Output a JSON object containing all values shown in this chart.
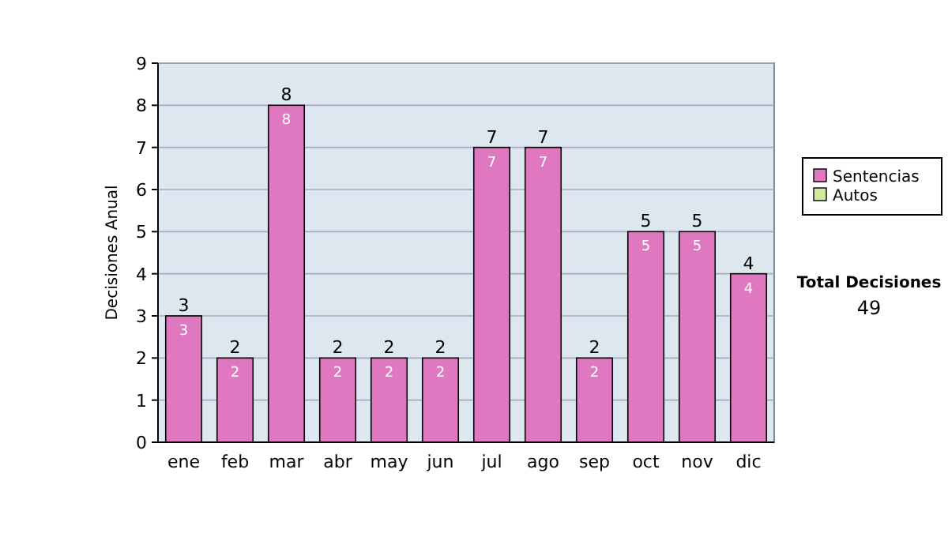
{
  "chart_data": {
    "type": "bar",
    "ylabel": "Decisiones Anual",
    "categories": [
      "ene",
      "feb",
      "mar",
      "abr",
      "may",
      "jun",
      "jul",
      "ago",
      "sep",
      "oct",
      "nov",
      "dic"
    ],
    "series": [
      {
        "name": "Sentencias",
        "color": "#df78c0",
        "values": [
          3,
          2,
          8,
          2,
          2,
          2,
          7,
          7,
          2,
          5,
          5,
          4
        ],
        "value_labels": [
          "3",
          "2",
          "8",
          "2",
          "2",
          "2",
          "7",
          "7",
          "2",
          "5",
          "5",
          "4"
        ]
      },
      {
        "name": "Autos",
        "color": "#d4e8a0",
        "values": [
          0,
          0,
          0,
          0,
          0,
          0,
          0,
          0,
          0,
          0,
          0,
          0
        ]
      }
    ],
    "stacked": true,
    "totals": [
      "3",
      "2",
      "8",
      "2",
      "2",
      "2",
      "7",
      "7",
      "2",
      "5",
      "5",
      "4"
    ],
    "ylim": [
      0,
      9
    ],
    "yticks": [
      0,
      1,
      2,
      3,
      4,
      5,
      6,
      7,
      8,
      9
    ],
    "grid": "y",
    "legend": "right",
    "annotations": [
      "Total Decisiones",
      "49"
    ]
  }
}
